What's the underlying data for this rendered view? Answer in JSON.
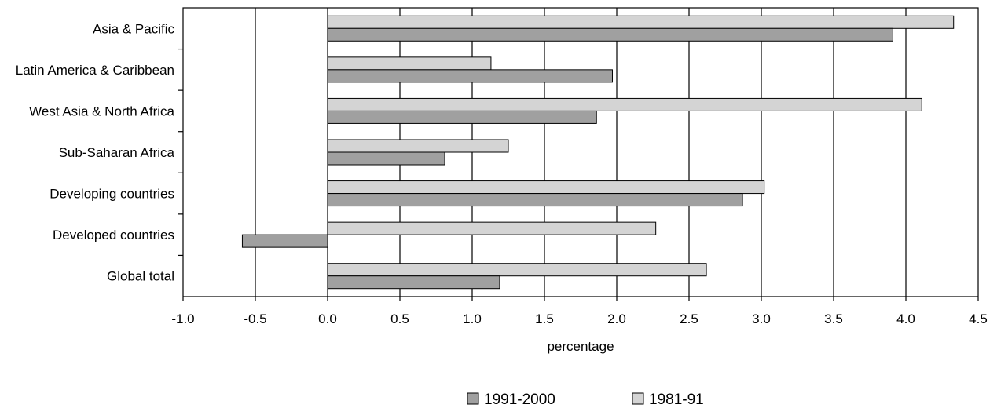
{
  "chart_data": {
    "type": "bar",
    "orientation": "horizontal",
    "categories": [
      "Asia & Pacific",
      "Latin America & Caribbean",
      "West Asia & North Africa",
      "Sub-Saharan Africa",
      "Developing countries",
      "Developed countries",
      "Global total"
    ],
    "series": [
      {
        "name": "1981-91",
        "values": [
          4.33,
          1.13,
          4.11,
          1.25,
          3.02,
          2.27,
          2.62
        ],
        "color": "#d4d4d4"
      },
      {
        "name": "1991-2000",
        "values": [
          3.91,
          1.97,
          1.86,
          0.81,
          2.87,
          -0.59,
          1.19
        ],
        "color": "#a0a0a0"
      }
    ],
    "xlabel": "percentage",
    "xlim": [
      -1.0,
      4.5
    ],
    "xticks": [
      "-1.0",
      "-0.5",
      "0.0",
      "0.5",
      "1.0",
      "1.5",
      "2.0",
      "2.5",
      "3.0",
      "3.5",
      "4.0",
      "4.5"
    ],
    "grid": "vertical",
    "legend": {
      "placement": "bottom",
      "entries": [
        "1991-2000",
        "1981-91"
      ]
    }
  }
}
